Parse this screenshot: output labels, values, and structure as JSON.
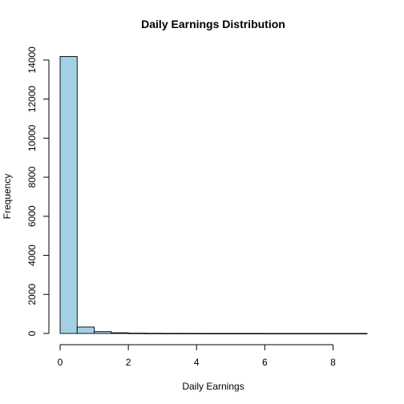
{
  "chart_data": {
    "type": "bar",
    "title": "Daily Earnings Distribution",
    "xlabel": "Daily Earnings",
    "ylabel": "Frequency",
    "bar_color": "#a4d0e3",
    "bin_edges": [
      0,
      0.5,
      1,
      1.5,
      2,
      2.5,
      3,
      3.5,
      4,
      4.5,
      5,
      5.5,
      6,
      6.5,
      7,
      7.5,
      8,
      8.5,
      9
    ],
    "values": [
      14180,
      330,
      95,
      35,
      15,
      8,
      5,
      4,
      3,
      2,
      2,
      2,
      1,
      1,
      1,
      1,
      1,
      1
    ],
    "xlim": [
      0,
      9
    ],
    "ylim": [
      0,
      14500
    ],
    "xticks": [
      "0",
      "2",
      "4",
      "6",
      "8"
    ],
    "yticks": [
      "0",
      "2000",
      "4000",
      "6000",
      "8000",
      "10000",
      "12000",
      "14000"
    ],
    "grid": false,
    "legend": "none"
  }
}
